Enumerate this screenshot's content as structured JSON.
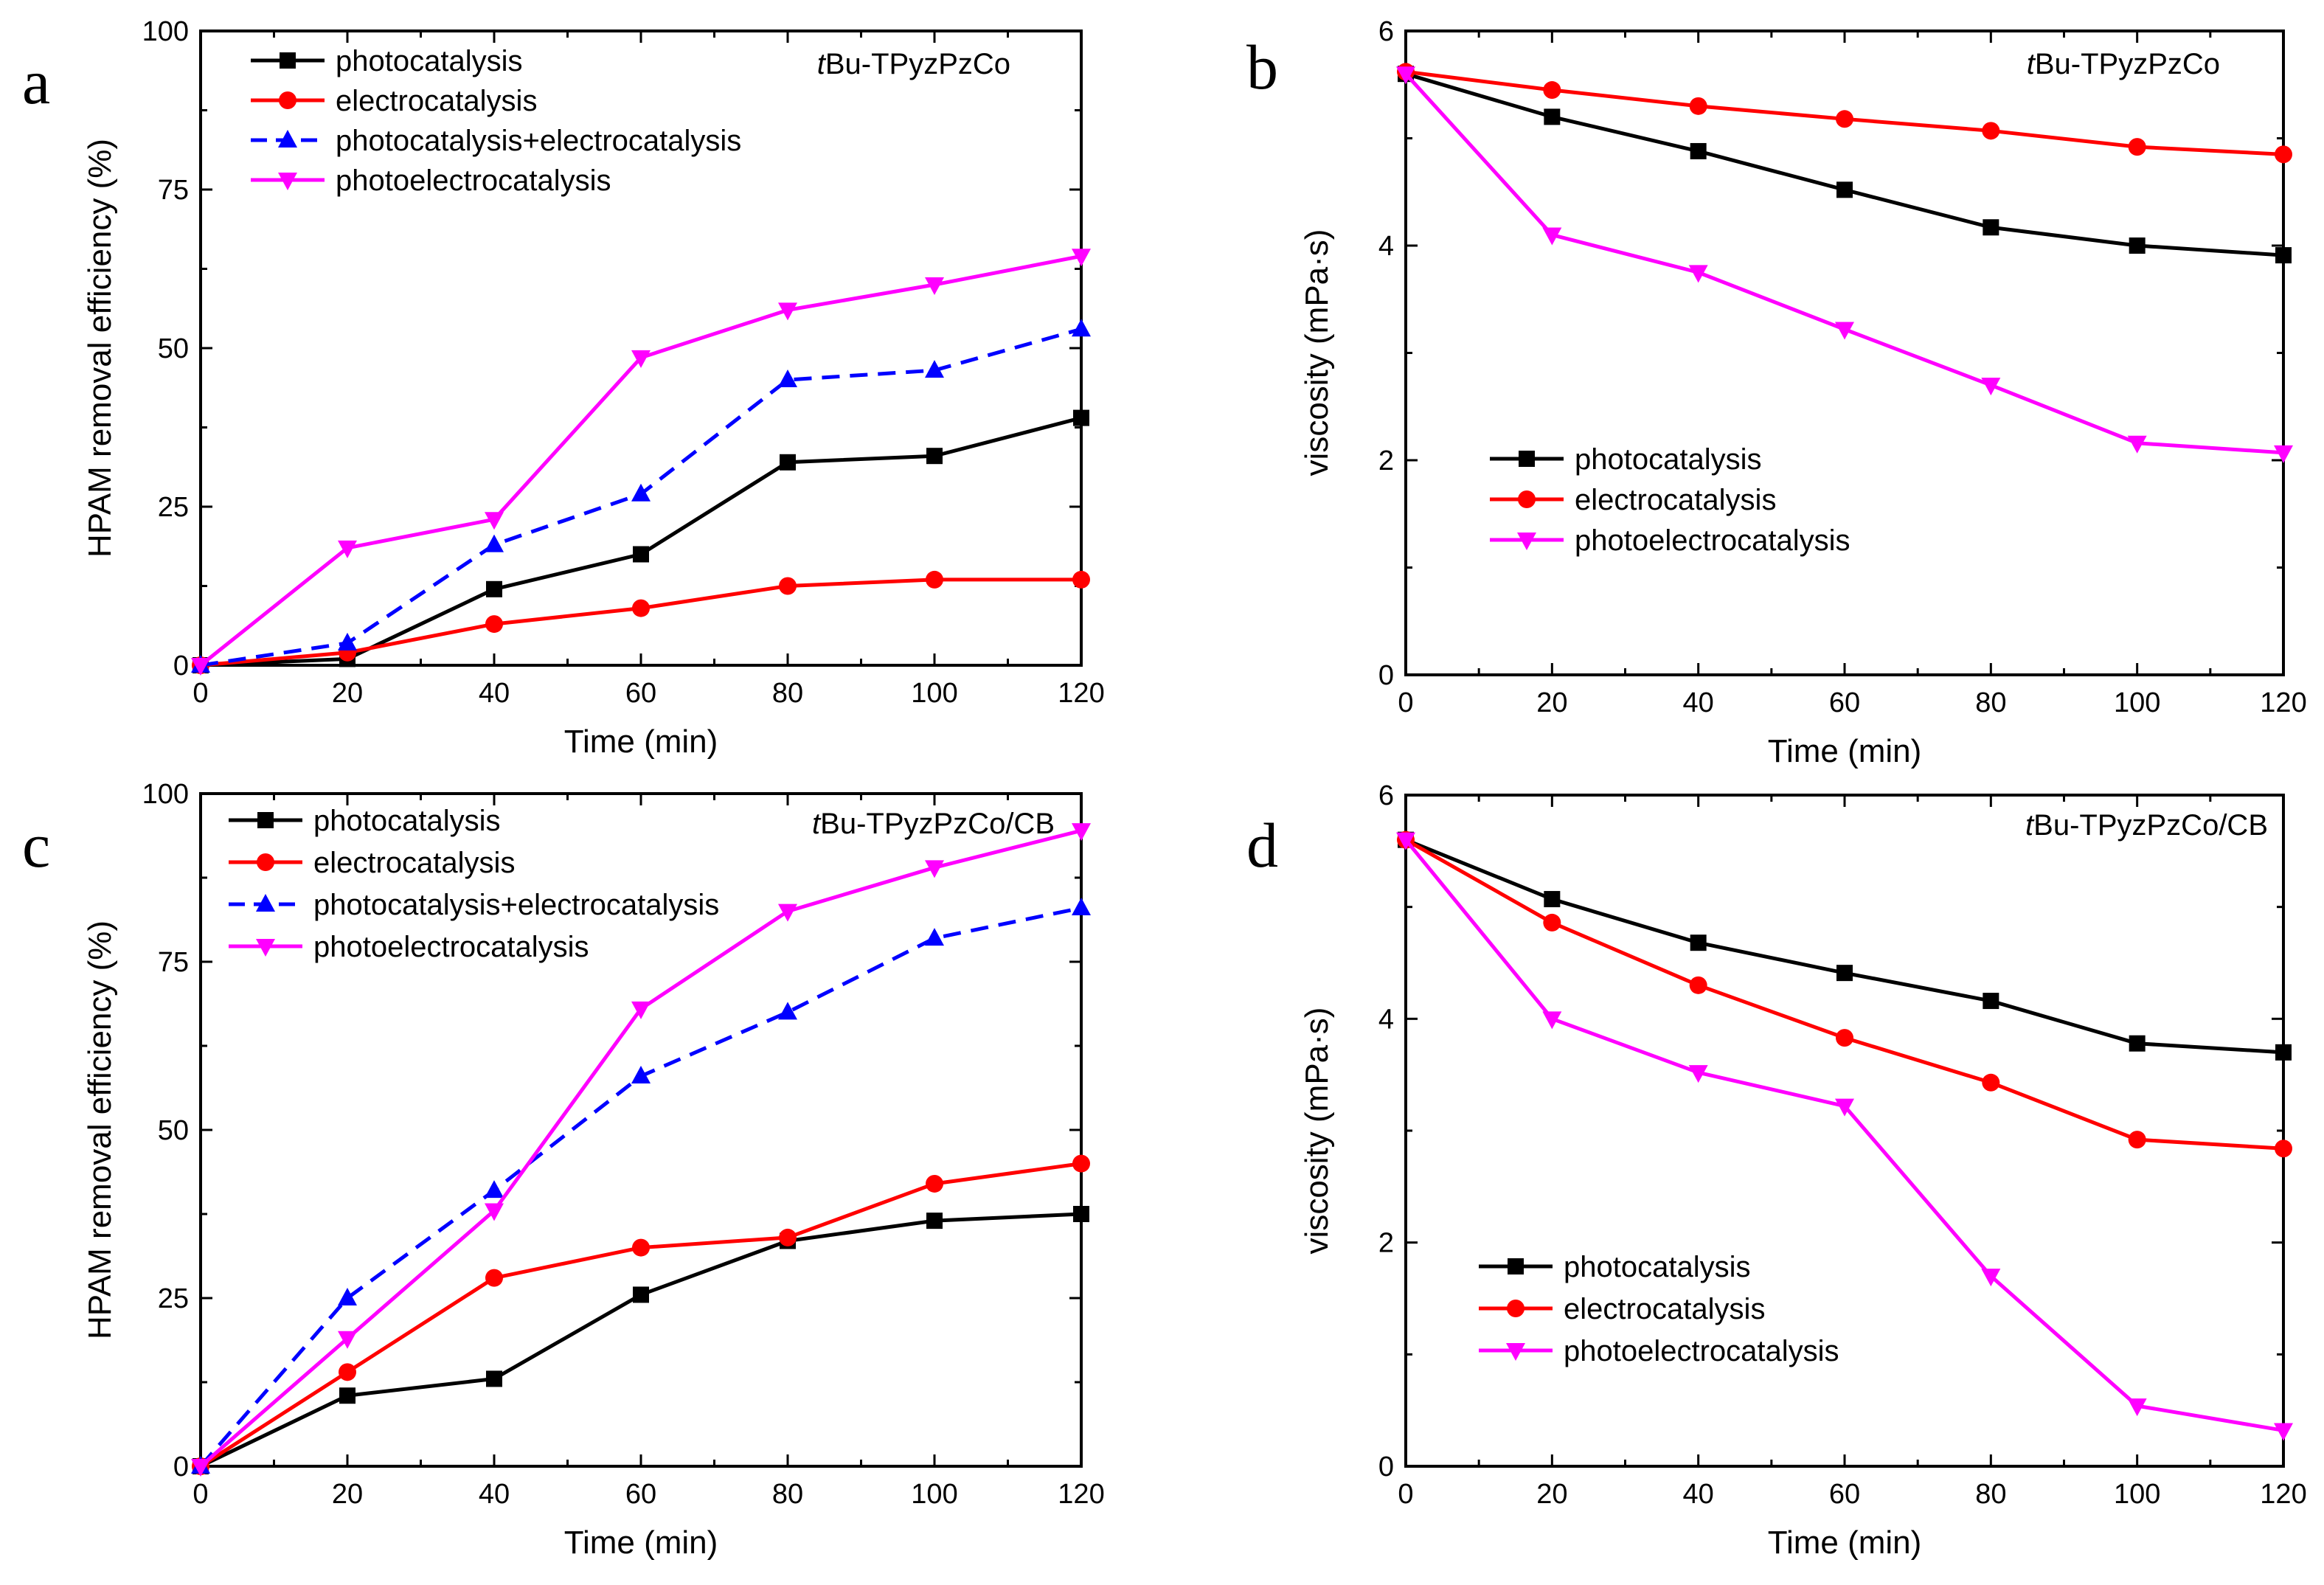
{
  "colors": {
    "photocatalysis": "#000000",
    "electrocatalysis": "#ff0000",
    "photocatalysis+electrocatalysis": "#0000ff",
    "photoelectrocatalysis": "#ff00ff"
  },
  "chart_data": [
    {
      "panel": "a",
      "type": "line",
      "annotation_prefix": "t",
      "annotation_rest": "Bu-TPyzPzCo",
      "xlabel": "Time (min)",
      "ylabel": "HPAM removal efficiency (%)",
      "xlim": [
        0,
        120
      ],
      "ylim": [
        0,
        100
      ],
      "xticks": [
        0,
        20,
        40,
        60,
        80,
        100,
        120
      ],
      "yticks": [
        0,
        25,
        50,
        75,
        100
      ],
      "legend_position": "top-left",
      "x": [
        0,
        20,
        40,
        60,
        80,
        100,
        120
      ],
      "series": [
        {
          "name": "photocatalysis",
          "marker": "square",
          "dash": false,
          "values": [
            0,
            1,
            12,
            17.5,
            32,
            33,
            39
          ]
        },
        {
          "name": "electrocatalysis",
          "marker": "circle",
          "dash": false,
          "values": [
            0,
            2,
            6.5,
            9,
            12.5,
            13.5,
            13.5
          ]
        },
        {
          "name": "photocatalysis+electrocatalysis",
          "marker": "triangle-up",
          "dash": true,
          "values": [
            0,
            3.5,
            19,
            27,
            45,
            46.5,
            53
          ]
        },
        {
          "name": "photoelectrocatalysis",
          "marker": "triangle-down",
          "dash": false,
          "values": [
            0,
            18.5,
            23,
            48.5,
            56,
            60,
            64.5
          ]
        }
      ]
    },
    {
      "panel": "b",
      "type": "line",
      "annotation_prefix": "t",
      "annotation_rest": "Bu-TPyzPzCo",
      "xlabel": "Time (min)",
      "ylabel": "viscosity (mPa·s)",
      "xlim": [
        0,
        120
      ],
      "ylim": [
        0,
        6
      ],
      "xticks": [
        0,
        20,
        40,
        60,
        80,
        100,
        120
      ],
      "yticks": [
        0,
        2,
        4,
        6
      ],
      "legend_position": "bottom-left",
      "x": [
        0,
        20,
        40,
        60,
        80,
        100,
        120
      ],
      "series": [
        {
          "name": "photocatalysis",
          "marker": "square",
          "dash": false,
          "values": [
            5.6,
            5.2,
            4.88,
            4.52,
            4.17,
            4.0,
            3.91
          ]
        },
        {
          "name": "electrocatalysis",
          "marker": "circle",
          "dash": false,
          "values": [
            5.62,
            5.45,
            5.3,
            5.18,
            5.07,
            4.92,
            4.85
          ]
        },
        {
          "name": "photoelectrocatalysis",
          "marker": "triangle-down",
          "dash": false,
          "values": [
            5.6,
            4.1,
            3.75,
            3.22,
            2.7,
            2.16,
            2.07
          ]
        }
      ]
    },
    {
      "panel": "c",
      "type": "line",
      "annotation_prefix": "t",
      "annotation_rest": "Bu-TPyzPzCo/CB",
      "xlabel": "Time (min)",
      "ylabel": "HPAM removal efficiency (%)",
      "xlim": [
        0,
        120
      ],
      "ylim": [
        0,
        100
      ],
      "xticks": [
        0,
        20,
        40,
        60,
        80,
        100,
        120
      ],
      "yticks": [
        0,
        25,
        50,
        75,
        100
      ],
      "legend_position": "top-left",
      "x": [
        0,
        20,
        40,
        60,
        80,
        100,
        120
      ],
      "series": [
        {
          "name": "photocatalysis",
          "marker": "square",
          "dash": false,
          "values": [
            0,
            10.5,
            13,
            25.5,
            33.5,
            36.5,
            37.5
          ]
        },
        {
          "name": "electrocatalysis",
          "marker": "circle",
          "dash": false,
          "values": [
            0,
            14,
            28,
            32.5,
            34,
            42,
            45
          ]
        },
        {
          "name": "photocatalysis+electrocatalysis",
          "marker": "triangle-up",
          "dash": true,
          "values": [
            0,
            25,
            41,
            58,
            67.5,
            78.5,
            83
          ]
        },
        {
          "name": "photoelectrocatalysis",
          "marker": "triangle-down",
          "dash": false,
          "values": [
            0,
            19,
            38,
            68,
            82.5,
            89,
            94.5
          ]
        }
      ]
    },
    {
      "panel": "d",
      "type": "line",
      "annotation_prefix": "t",
      "annotation_rest": "Bu-TPyzPzCo/CB",
      "xlabel": "Time (min)",
      "ylabel": "viscosity (mPa·s)",
      "xlim": [
        0,
        120
      ],
      "ylim": [
        0,
        6
      ],
      "xticks": [
        0,
        20,
        40,
        60,
        80,
        100,
        120
      ],
      "yticks": [
        0,
        2,
        4,
        6
      ],
      "legend_position": "bottom-left",
      "x": [
        0,
        20,
        40,
        60,
        80,
        100,
        120
      ],
      "series": [
        {
          "name": "photocatalysis",
          "marker": "square",
          "dash": false,
          "values": [
            5.6,
            5.07,
            4.68,
            4.41,
            4.16,
            3.78,
            3.7
          ]
        },
        {
          "name": "electrocatalysis",
          "marker": "circle",
          "dash": false,
          "values": [
            5.6,
            4.86,
            4.3,
            3.83,
            3.43,
            2.92,
            2.84
          ]
        },
        {
          "name": "photoelectrocatalysis",
          "marker": "triangle-down",
          "dash": false,
          "values": [
            5.6,
            4.0,
            3.52,
            3.22,
            1.7,
            0.54,
            0.32
          ]
        }
      ]
    }
  ]
}
